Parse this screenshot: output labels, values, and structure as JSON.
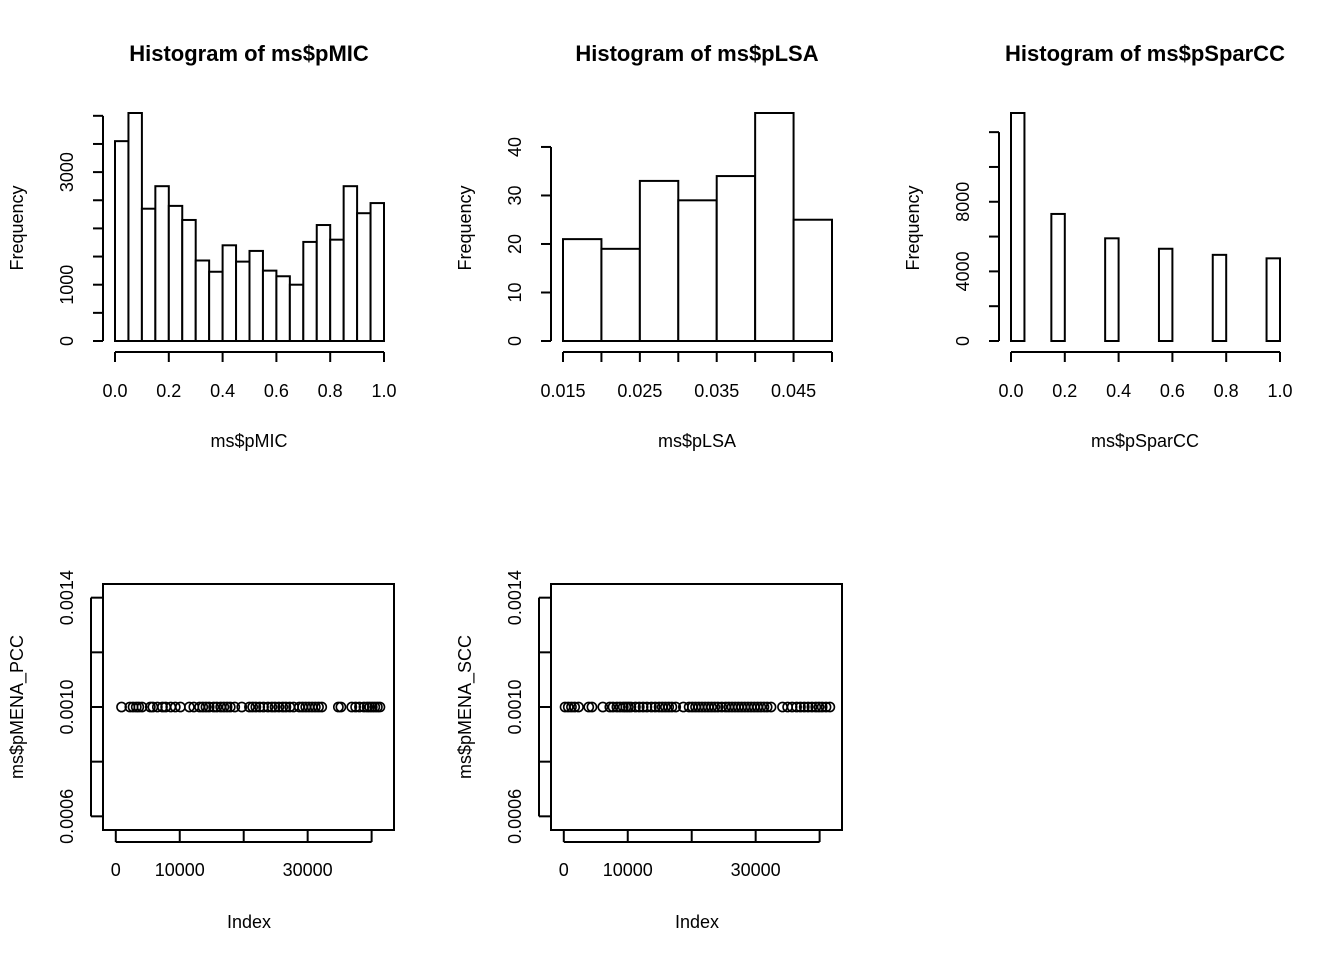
{
  "chart_data": [
    {
      "type": "bar",
      "panel": "histogram",
      "title": "Histogram of ms$pMIC",
      "xlabel": "ms$pMIC",
      "ylabel": "Frequency",
      "breaks": [
        0,
        0.05,
        0.1,
        0.15,
        0.2,
        0.25,
        0.3,
        0.35,
        0.4,
        0.45,
        0.5,
        0.55,
        0.6,
        0.65,
        0.7,
        0.75,
        0.8,
        0.85,
        0.9,
        0.95,
        1.0
      ],
      "counts": [
        3550,
        4050,
        2350,
        2750,
        2400,
        2150,
        1430,
        1230,
        1700,
        1410,
        1600,
        1250,
        1150,
        1000,
        1760,
        2060,
        1800,
        2750,
        2270,
        2450
      ],
      "xlim": [
        0,
        1.0
      ],
      "ylim": [
        0,
        4050
      ],
      "xticks": [
        0.0,
        0.2,
        0.4,
        0.6,
        0.8,
        1.0
      ],
      "xtick_labels": [
        "0.0",
        "0.2",
        "0.4",
        "0.6",
        "0.8",
        "1.0"
      ],
      "yticks": [
        0,
        500,
        1000,
        1500,
        2000,
        2500,
        3000,
        3500,
        4000
      ],
      "ytick_labels": [
        "0",
        "",
        "1000",
        "",
        "",
        "",
        "3000",
        "",
        ""
      ]
    },
    {
      "type": "bar",
      "panel": "histogram",
      "title": "Histogram of ms$pLSA",
      "xlabel": "ms$pLSA",
      "ylabel": "Frequency",
      "breaks": [
        0.015,
        0.02,
        0.025,
        0.03,
        0.035,
        0.04,
        0.045,
        0.05
      ],
      "counts": [
        21,
        19,
        33,
        29,
        34,
        47,
        25
      ],
      "xlim": [
        0.015,
        0.05
      ],
      "ylim": [
        0,
        47
      ],
      "xticks": [
        0.015,
        0.02,
        0.025,
        0.03,
        0.035,
        0.04,
        0.045,
        0.05
      ],
      "xtick_labels": [
        "0.015",
        "",
        "0.025",
        "",
        "0.035",
        "",
        "0.045",
        ""
      ],
      "yticks": [
        0,
        10,
        20,
        30,
        40
      ],
      "ytick_labels": [
        "0",
        "10",
        "20",
        "30",
        "40"
      ]
    },
    {
      "type": "bar",
      "panel": "histogram",
      "title": "Histogram of ms$pSparCC",
      "xlabel": "ms$pSparCC",
      "ylabel": "Frequency",
      "breaks": [
        0,
        0.05,
        0.1,
        0.15,
        0.2,
        0.25,
        0.3,
        0.35,
        0.4,
        0.45,
        0.5,
        0.55,
        0.6,
        0.65,
        0.7,
        0.75,
        0.8,
        0.85,
        0.9,
        0.95,
        1.0
      ],
      "counts": [
        13100,
        0,
        0,
        7300,
        0,
        0,
        0,
        5900,
        0,
        0,
        0,
        5300,
        0,
        0,
        0,
        4950,
        0,
        0,
        0,
        4750
      ],
      "xlim": [
        0,
        1.0
      ],
      "ylim": [
        0,
        13100
      ],
      "xticks": [
        0.0,
        0.2,
        0.4,
        0.6,
        0.8,
        1.0
      ],
      "xtick_labels": [
        "0.0",
        "0.2",
        "0.4",
        "0.6",
        "0.8",
        "1.0"
      ],
      "yticks": [
        0,
        2000,
        4000,
        6000,
        8000,
        10000,
        12000
      ],
      "ytick_labels": [
        "0",
        "",
        "4000",
        "",
        "8000",
        "",
        ""
      ]
    },
    {
      "type": "scatter",
      "panel": "index-plot",
      "xlabel": "Index",
      "ylabel": "ms$pMENA_PCC",
      "xlim": [
        -2000,
        43500
      ],
      "ylim": [
        0.00055,
        0.00145
      ],
      "xticks": [
        0,
        10000,
        20000,
        30000,
        40000
      ],
      "xtick_labels": [
        "0",
        "10000",
        "",
        "30000",
        ""
      ],
      "yticks": [
        0.0006,
        0.0008,
        0.001,
        0.0012,
        0.0014
      ],
      "ytick_labels": [
        "0.0006",
        "",
        "0.0010",
        "",
        "0.0014"
      ],
      "x": [
        900,
        2200,
        2700,
        3200,
        3600,
        4100,
        5400,
        5800,
        6500,
        7300,
        7800,
        8600,
        9300,
        10100,
        11500,
        12200,
        13100,
        13600,
        14100,
        14600,
        15300,
        15800,
        16400,
        16900,
        17400,
        17900,
        18600,
        19700,
        20900,
        21400,
        21900,
        22500,
        23100,
        23800,
        24400,
        24900,
        25500,
        26100,
        26600,
        27200,
        27800,
        28700,
        29200,
        29700,
        30200,
        30700,
        31200,
        31700,
        32200,
        34800,
        35200,
        36900,
        37500,
        38100,
        38800,
        39300,
        39700,
        40100,
        40500,
        40900,
        41300
      ],
      "y": [
        0.001,
        0.001,
        0.001,
        0.001,
        0.001,
        0.001,
        0.001,
        0.001,
        0.001,
        0.001,
        0.001,
        0.001,
        0.001,
        0.001,
        0.001,
        0.001,
        0.001,
        0.001,
        0.001,
        0.001,
        0.001,
        0.001,
        0.001,
        0.001,
        0.001,
        0.001,
        0.001,
        0.001,
        0.001,
        0.001,
        0.001,
        0.001,
        0.001,
        0.001,
        0.001,
        0.001,
        0.001,
        0.001,
        0.001,
        0.001,
        0.001,
        0.001,
        0.001,
        0.001,
        0.001,
        0.001,
        0.001,
        0.001,
        0.001,
        0.001,
        0.001,
        0.001,
        0.001,
        0.001,
        0.001,
        0.001,
        0.001,
        0.001,
        0.001,
        0.001,
        0.001
      ]
    },
    {
      "type": "scatter",
      "panel": "index-plot",
      "xlabel": "Index",
      "ylabel": "ms$pMENA_SCC",
      "xlim": [
        -2000,
        43500
      ],
      "ylim": [
        0.00055,
        0.00145
      ],
      "xticks": [
        0,
        10000,
        20000,
        30000,
        40000
      ],
      "xtick_labels": [
        "0",
        "10000",
        "",
        "30000",
        ""
      ],
      "yticks": [
        0.0006,
        0.0008,
        0.001,
        0.0012,
        0.0014
      ],
      "ytick_labels": [
        "0.0006",
        "",
        "0.0010",
        "",
        "0.0014"
      ],
      "x": [
        200,
        700,
        1200,
        1700,
        2300,
        3900,
        4400,
        6100,
        7200,
        7700,
        8300,
        8800,
        9300,
        9700,
        10100,
        10500,
        11200,
        11800,
        12400,
        13000,
        13700,
        14300,
        14900,
        15400,
        15900,
        16400,
        16900,
        17500,
        18700,
        19600,
        20100,
        20600,
        21100,
        21600,
        22100,
        22600,
        23100,
        23600,
        24100,
        24700,
        25300,
        25800,
        26300,
        26800,
        27300,
        27800,
        28300,
        28800,
        29300,
        29800,
        30300,
        30800,
        31300,
        31800,
        32400,
        34200,
        35000,
        35700,
        36400,
        37000,
        37600,
        38200,
        38800,
        39400,
        39900,
        40400,
        41000,
        41600
      ],
      "y": [
        0.001,
        0.001,
        0.001,
        0.001,
        0.001,
        0.001,
        0.001,
        0.001,
        0.001,
        0.001,
        0.001,
        0.001,
        0.001,
        0.001,
        0.001,
        0.001,
        0.001,
        0.001,
        0.001,
        0.001,
        0.001,
        0.001,
        0.001,
        0.001,
        0.001,
        0.001,
        0.001,
        0.001,
        0.001,
        0.001,
        0.001,
        0.001,
        0.001,
        0.001,
        0.001,
        0.001,
        0.001,
        0.001,
        0.001,
        0.001,
        0.001,
        0.001,
        0.001,
        0.001,
        0.001,
        0.001,
        0.001,
        0.001,
        0.001,
        0.001,
        0.001,
        0.001,
        0.001,
        0.001,
        0.001,
        0.001,
        0.001,
        0.001,
        0.001,
        0.001,
        0.001,
        0.001,
        0.001,
        0.001,
        0.001,
        0.001,
        0.001,
        0.001
      ]
    }
  ]
}
